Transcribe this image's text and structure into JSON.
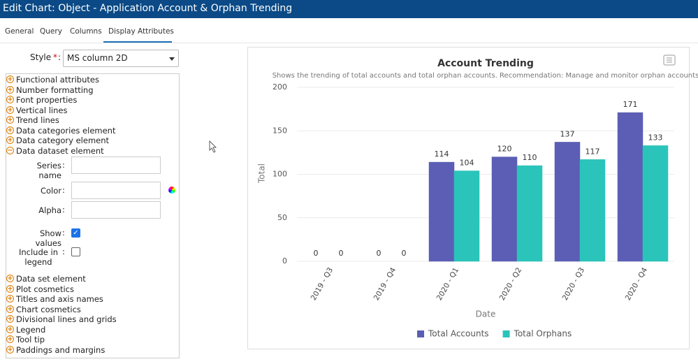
{
  "window": {
    "title": "Edit Chart: Object - Application Account & Orphan Trending"
  },
  "tabs": [
    "General",
    "Query",
    "Columns",
    "Display Attributes"
  ],
  "form": {
    "style": {
      "label": "Style",
      "required": "*",
      "separator": ":",
      "value": "MS column 2D"
    }
  },
  "tree": {
    "groups_before": [
      "Functional attributes",
      "Number formatting",
      "Font properties",
      "Vertical lines",
      "Trend lines",
      "Data categories element",
      "Data category element"
    ],
    "expanded": "Data dataset element",
    "fields": [
      {
        "label": "Series name",
        "input": "text"
      },
      {
        "label": "Color",
        "input": "text",
        "picker": true
      },
      {
        "label": "Alpha",
        "input": "text"
      },
      {
        "label": "Show values",
        "input": "checkbox",
        "checked": true
      },
      {
        "label": "Include in legend",
        "input": "checkbox",
        "checked": false
      }
    ],
    "separator": ":",
    "groups_after": [
      "Data set element",
      "Plot cosmetics",
      "Titles and axis names",
      "Chart cosmetics",
      "Divisional lines and grids",
      "Legend",
      "Tool tip",
      "Paddings and margins"
    ]
  },
  "chart_data": {
    "type": "bar",
    "title": "Account Trending",
    "subtitle": "Shows the trending of total accounts and total orphan accounts. Recommendation: Manage and monitor orphan accounts",
    "x_label": "Date",
    "y_label": "Total",
    "categories": [
      "2019 - Q3",
      "2019 - Q4",
      "2020 - Q1",
      "2020 - Q2",
      "2020 - Q3",
      "2020 - Q4"
    ],
    "series": [
      {
        "name": "Total Accounts",
        "color": "#5b5eb4",
        "values": [
          0,
          0,
          114,
          120,
          137,
          171
        ]
      },
      {
        "name": "Total Orphans",
        "color": "#2bc4bb",
        "values": [
          0,
          0,
          104,
          110,
          117,
          133
        ]
      }
    ],
    "ylim": [
      0,
      200
    ],
    "yticks": [
      0,
      50,
      100,
      150,
      200
    ],
    "grid": true,
    "legend": "bottom",
    "show_values": true
  }
}
